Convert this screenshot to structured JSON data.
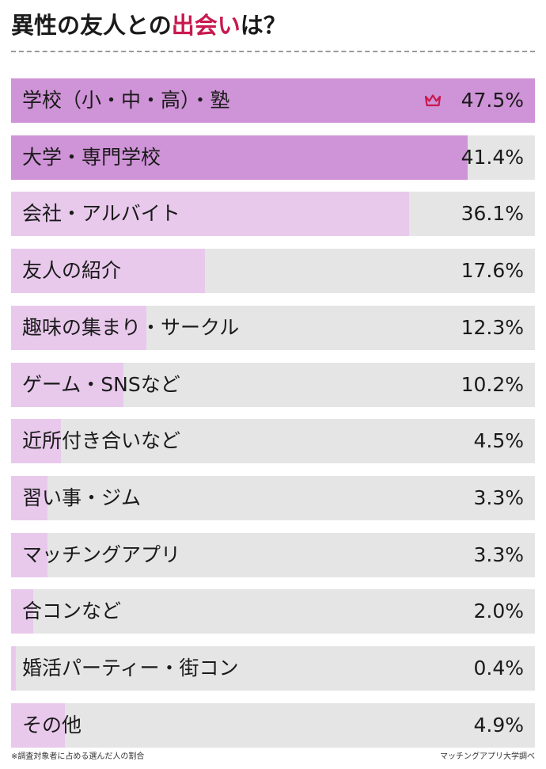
{
  "title_parts": {
    "before": "異性の友人との",
    "highlight": "出会い",
    "after": "は？"
  },
  "colors": {
    "top_bar": "#cf93d7",
    "other_bar": "#e8c9ec",
    "track": "#e5e5e5",
    "highlight": "#c8194f",
    "crown": "#c8194f"
  },
  "crown_icon": "crown-icon",
  "chart_data": {
    "type": "bar",
    "orientation": "horizontal",
    "title": "異性の友人との出会いは？",
    "categories": [
      "学校（小・中・高）・塾",
      "大学・専門学校",
      "会社・アルバイト",
      "友人の紹介",
      "趣味の集まり・サークル",
      "ゲーム・SNSなど",
      "近所付き合いなど",
      "習い事・ジム",
      "マッチングアプリ",
      "合コンなど",
      "婚活パーティー・街コン",
      "その他"
    ],
    "values": [
      47.5,
      41.4,
      36.1,
      17.6,
      12.3,
      10.2,
      4.5,
      3.3,
      3.3,
      2.0,
      0.4,
      4.9
    ],
    "value_labels": [
      "47.5%",
      "41.4%",
      "36.1%",
      "17.6%",
      "12.3%",
      "10.2%",
      "4.5%",
      "3.3%",
      "3.3%",
      "2.0%",
      "0.4%",
      "4.9%"
    ],
    "xlim": [
      0,
      47.5
    ],
    "top_categories": 2,
    "grid": false
  },
  "footnote": "※調査対象者に占める選んだ人の割合",
  "source": "マッチングアプリ大学調べ"
}
